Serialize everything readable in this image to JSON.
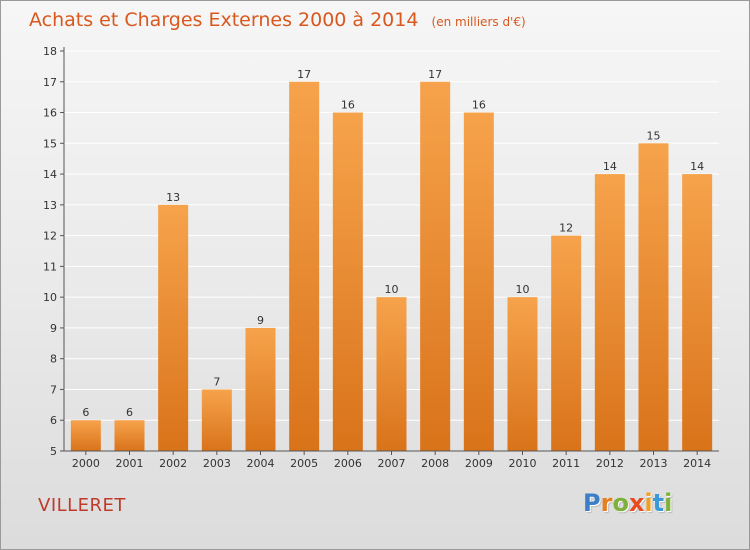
{
  "header": {
    "title": "Achats et Charges Externes 2000 à 2014",
    "unit": "(en milliers d'€)"
  },
  "footer": {
    "commune": "VILLERET",
    "logo": {
      "text": "Proxiti",
      "letter_colors": [
        "#3a7fc8",
        "#e67e22",
        "#7fb13a",
        "#e84c1e",
        "#f0a020",
        "#3a9ad9",
        "#7fb13a"
      ]
    }
  },
  "colors": {
    "bar_top": "#f6a34c",
    "bar_bottom": "#d9731a",
    "title": "#d9581e"
  },
  "chart_data": {
    "type": "bar",
    "categories": [
      "2000",
      "2001",
      "2002",
      "2003",
      "2004",
      "2005",
      "2006",
      "2007",
      "2008",
      "2009",
      "2010",
      "2011",
      "2012",
      "2013",
      "2014"
    ],
    "values": [
      6,
      6,
      13,
      7,
      9,
      17,
      16,
      10,
      17,
      16,
      10,
      12,
      14,
      15,
      14
    ],
    "title": "Achats et Charges Externes 2000 à 2014",
    "subtitle": "(en milliers d'€)",
    "xlabel": "",
    "ylabel": "",
    "ylim": [
      5,
      18
    ],
    "yticks": [
      5,
      6,
      7,
      8,
      9,
      10,
      11,
      12,
      13,
      14,
      15,
      16,
      17,
      18
    ],
    "grid": true
  }
}
